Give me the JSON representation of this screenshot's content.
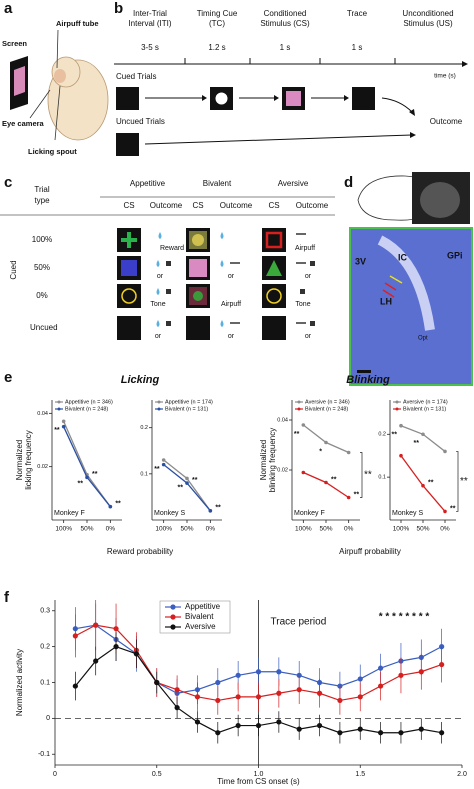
{
  "panel_labels": [
    "a",
    "b",
    "c",
    "d",
    "e",
    "f"
  ],
  "a": {
    "labels": [
      "Screen",
      "Airpuff tube",
      "Eye camera",
      "Licking spout"
    ]
  },
  "b": {
    "epochs": [
      {
        "label": [
          "Inter-Trial",
          "Interval (ITI)"
        ],
        "duration": "3-5 s"
      },
      {
        "label": [
          "Timing Cue",
          "(TC)"
        ],
        "duration": "1.2 s"
      },
      {
        "label": [
          "Conditioned",
          "Stimulus (CS)"
        ],
        "duration": "1 s"
      },
      {
        "label": [
          "Trace"
        ],
        "duration": "1 s"
      },
      {
        "label": [
          "Unconditioned",
          "Stimulus (US)"
        ]
      }
    ],
    "time_label": "time (s)",
    "rows": [
      "Cued Trials",
      "Uncued Trials"
    ],
    "outcome": "Outcome"
  },
  "c": {
    "trial_type": [
      "Trial",
      "type"
    ],
    "groups": [
      "Appetitive",
      "Bivalent",
      "Aversive"
    ],
    "subheaders": [
      "CS",
      "Outcome"
    ],
    "cued": "Cued",
    "rows": [
      "100%",
      "50%",
      "0%",
      "Uncued"
    ],
    "outcomes": [
      [
        "Reward",
        null,
        "Airpuff"
      ],
      [
        "or",
        "or",
        "or"
      ],
      [
        "Tone",
        "Airpuff",
        "Tone"
      ],
      [
        "or",
        "or",
        "or"
      ]
    ]
  },
  "d": {
    "labels": [
      "3V",
      "IC",
      "GPi",
      "LH",
      "Opt"
    ]
  },
  "e": {
    "titles": [
      "Licking",
      "Blinking"
    ],
    "ylabels": [
      [
        "Normalized",
        "licking frequency"
      ],
      [
        "Normalized",
        "blinking frequency"
      ]
    ],
    "xlabels": [
      "Reward probability",
      "Airpuff probability"
    ],
    "pair_stars": [
      "**",
      "**"
    ]
  },
  "chart_data": [
    {
      "type": "line",
      "subtitle": "Monkey F",
      "categories": [
        "100%",
        "50%",
        "0%"
      ],
      "series": [
        {
          "name": "Appetitive (n = 346)",
          "color": "#8c8c8c",
          "values": [
            0.037,
            0.017,
            0.005
          ],
          "stars": [
            "**",
            "**",
            null
          ]
        },
        {
          "name": "Bivalent (n = 248)",
          "color": "#2a4fa3",
          "values": [
            0.035,
            0.016,
            0.005
          ],
          "stars": [
            null,
            "**",
            "**"
          ]
        }
      ],
      "ylim": [
        0,
        0.045
      ],
      "yticks": [
        0.02,
        0.04
      ]
    },
    {
      "type": "line",
      "subtitle": "Monkey S",
      "categories": [
        "100%",
        "50%",
        "0%"
      ],
      "series": [
        {
          "name": "Appetitive (n = 174)",
          "color": "#8c8c8c",
          "values": [
            0.13,
            0.09,
            0.02
          ],
          "stars": [
            "**",
            "**",
            null
          ]
        },
        {
          "name": "Bivalent (n = 131)",
          "color": "#2a4fa3",
          "values": [
            0.12,
            0.08,
            0.02
          ],
          "stars": [
            null,
            "**",
            "**"
          ]
        }
      ],
      "ylim": [
        0,
        0.26
      ],
      "yticks": [
        0.1,
        0.2
      ]
    },
    {
      "type": "line",
      "subtitle": "Monkey F",
      "categories": [
        "100%",
        "50%",
        "0%"
      ],
      "series": [
        {
          "name": "Aversive (n = 346)",
          "color": "#8c8c8c",
          "values": [
            0.038,
            0.031,
            0.027
          ],
          "stars": [
            "**",
            "*",
            null
          ]
        },
        {
          "name": "Bivalent (n = 248)",
          "color": "#d62020",
          "values": [
            0.019,
            0.015,
            0.009
          ],
          "stars": [
            null,
            "**",
            "**"
          ]
        }
      ],
      "ylim": [
        0,
        0.048
      ],
      "yticks": [
        0.02,
        0.04
      ]
    },
    {
      "type": "line",
      "subtitle": "Monkey S",
      "categories": [
        "100%",
        "50%",
        "0%"
      ],
      "series": [
        {
          "name": "Aversive (n = 174)",
          "color": "#8c8c8c",
          "values": [
            0.22,
            0.2,
            0.16
          ],
          "stars": [
            "**",
            "**",
            null
          ]
        },
        {
          "name": "Bivalent (n = 131)",
          "color": "#d62020",
          "values": [
            0.15,
            0.08,
            0.02
          ],
          "stars": [
            null,
            "**",
            "**"
          ]
        }
      ],
      "ylim": [
        0,
        0.28
      ],
      "yticks": [
        0.1,
        0.2
      ]
    },
    {
      "type": "line",
      "xlabel": "Time from CS onset (s)",
      "ylabel": "Normalized activity",
      "x": [
        0.1,
        0.2,
        0.3,
        0.4,
        0.5,
        0.6,
        0.7,
        0.8,
        0.9,
        1.0,
        1.1,
        1.2,
        1.3,
        1.4,
        1.5,
        1.6,
        1.7,
        1.8,
        1.9
      ],
      "series": [
        {
          "name": "Appetitive",
          "color": "#3b5fc0",
          "values": [
            0.25,
            0.26,
            0.22,
            0.18,
            0.1,
            0.07,
            0.08,
            0.1,
            0.12,
            0.13,
            0.13,
            0.12,
            0.1,
            0.09,
            0.11,
            0.14,
            0.16,
            0.17,
            0.2
          ],
          "errors": [
            0.06,
            0.06,
            0.06,
            0.05,
            0.04,
            0.04,
            0.04,
            0.04,
            0.04,
            0.04,
            0.04,
            0.04,
            0.04,
            0.04,
            0.04,
            0.04,
            0.05,
            0.05,
            0.05
          ]
        },
        {
          "name": "Bivalent",
          "color": "#d62020",
          "values": [
            0.23,
            0.26,
            0.25,
            0.19,
            0.1,
            0.08,
            0.06,
            0.05,
            0.06,
            0.06,
            0.07,
            0.08,
            0.07,
            0.05,
            0.06,
            0.09,
            0.12,
            0.13,
            0.15
          ],
          "errors": [
            0.06,
            0.07,
            0.07,
            0.05,
            0.04,
            0.04,
            0.04,
            0.04,
            0.04,
            0.04,
            0.04,
            0.04,
            0.04,
            0.04,
            0.04,
            0.04,
            0.05,
            0.05,
            0.05
          ]
        },
        {
          "name": "Aversive",
          "color": "#111111",
          "values": [
            0.09,
            0.16,
            0.2,
            0.18,
            0.1,
            0.03,
            -0.01,
            -0.04,
            -0.02,
            -0.02,
            -0.01,
            -0.03,
            -0.02,
            -0.04,
            -0.03,
            -0.04,
            -0.04,
            -0.03,
            -0.04
          ],
          "errors": [
            0.04,
            0.04,
            0.04,
            0.04,
            0.03,
            0.03,
            0.03,
            0.03,
            0.03,
            0.03,
            0.03,
            0.03,
            0.03,
            0.03,
            0.03,
            0.03,
            0.03,
            0.03,
            0.03
          ]
        }
      ],
      "xlim": [
        0,
        2
      ],
      "ylim": [
        -0.13,
        0.33
      ],
      "xticks": [
        0,
        0.5,
        {
          "value": 1,
          "label": "1.0"
        },
        1.5,
        {
          "value": 2,
          "label": "2.0"
        }
      ],
      "yticks": [
        -0.1,
        0,
        0.1,
        0.2,
        0.3
      ],
      "annotations": [
        "Trace period",
        "* * * * * * * *"
      ],
      "legend": "upper center"
    }
  ]
}
